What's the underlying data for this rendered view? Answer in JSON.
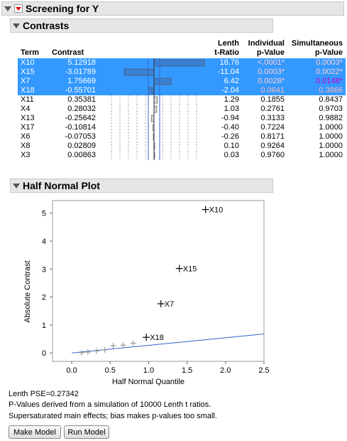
{
  "screening": {
    "title": "Screening for Y"
  },
  "contrasts": {
    "title": "Contrasts",
    "headers": {
      "term": "Term",
      "contrast": "Contrast",
      "lenth1": "Lenth",
      "lenth2": "t-Ratio",
      "ind1": "Individual",
      "ind2": "p-Value",
      "sim1": "Simultaneous",
      "sim2": "p-Value"
    },
    "rows": [
      {
        "term": "X10",
        "contrast": "5.12918",
        "t": "18.76",
        "ind": "<.0001*",
        "sim": "0.0003*",
        "selected": true,
        "tval": 18.76
      },
      {
        "term": "X15",
        "contrast": "-3.01789",
        "t": "-11.04",
        "ind": "0.0003*",
        "sim": "0.0022*",
        "selected": true,
        "tval": -11.04
      },
      {
        "term": "X7",
        "contrast": "1.75669",
        "t": "6.42",
        "ind": "0.0028*",
        "sim": "0.0148*",
        "selected": true,
        "tval": 6.42
      },
      {
        "term": "X18",
        "contrast": "-0.55701",
        "t": "-2.04",
        "ind": "0.0641",
        "sim": "0.3866",
        "selected": true,
        "tval": -2.04
      },
      {
        "term": "X11",
        "contrast": "0.35381",
        "t": "1.29",
        "ind": "0.1855",
        "sim": "0.8437",
        "selected": false,
        "tval": 1.29
      },
      {
        "term": "X4",
        "contrast": "0.28032",
        "t": "1.03",
        "ind": "0.2761",
        "sim": "0.9703",
        "selected": false,
        "tval": 1.03
      },
      {
        "term": "X13",
        "contrast": "-0.25642",
        "t": "-0.94",
        "ind": "0.3133",
        "sim": "0.9882",
        "selected": false,
        "tval": -0.94
      },
      {
        "term": "X17",
        "contrast": "-0.10814",
        "t": "-0.40",
        "ind": "0.7224",
        "sim": "1.0000",
        "selected": false,
        "tval": -0.4
      },
      {
        "term": "X6",
        "contrast": "-0.07053",
        "t": "-0.26",
        "ind": "0.8171",
        "sim": "1.0000",
        "selected": false,
        "tval": -0.26
      },
      {
        "term": "X8",
        "contrast": "0.02809",
        "t": "0.10",
        "ind": "0.9264",
        "sim": "1.0000",
        "selected": false,
        "tval": 0.1
      },
      {
        "term": "X3",
        "contrast": "0.00863",
        "t": "0.03",
        "ind": "0.9760",
        "sim": "1.0000",
        "selected": false,
        "tval": 0.03
      }
    ]
  },
  "half_normal": {
    "title": "Half Normal Plot"
  },
  "chart_data": {
    "type": "scatter",
    "xlabel": "Half Normal Quantile",
    "ylabel": "Absolute Contrast",
    "xlim": [
      -0.25,
      2.5
    ],
    "ylim": [
      -0.3,
      5.45
    ],
    "xticks": [
      "0.0",
      "0.5",
      "1.0",
      "1.5",
      "2.0",
      "2.5"
    ],
    "yticks": [
      "0",
      "1",
      "2",
      "3",
      "4",
      "5"
    ],
    "labeled_points": [
      {
        "label": "X10",
        "x": 1.74,
        "y": 5.13
      },
      {
        "label": "X15",
        "x": 1.4,
        "y": 3.02
      },
      {
        "label": "X7",
        "x": 1.16,
        "y": 1.76
      },
      {
        "label": "X18",
        "x": 0.97,
        "y": 0.56
      }
    ],
    "unlabeled_points": [
      {
        "x": 0.8,
        "y": 0.35
      },
      {
        "x": 0.67,
        "y": 0.28
      },
      {
        "x": 0.54,
        "y": 0.26
      },
      {
        "x": 0.43,
        "y": 0.11
      },
      {
        "x": 0.32,
        "y": 0.07
      },
      {
        "x": 0.21,
        "y": 0.03
      },
      {
        "x": 0.13,
        "y": 0.01
      }
    ],
    "fit_line": {
      "x0": 0.0,
      "y0": 0.0,
      "x1": 2.5,
      "y1": 0.68
    }
  },
  "footer": {
    "pse": "Lenth PSE=0.27342",
    "note1": "P-Values derived from a simulation of 10000 Lenth t ratios.",
    "note2": "Supersaturated main effects; bias makes p-values too small."
  },
  "buttons": {
    "make_model": "Make Model",
    "run_model": "Run Model"
  },
  "colors": {
    "selection": "#3399ff",
    "significant_red": "#d00000",
    "simultaneous_magenta": "#cc00cc",
    "fit_line": "#3366cc"
  }
}
